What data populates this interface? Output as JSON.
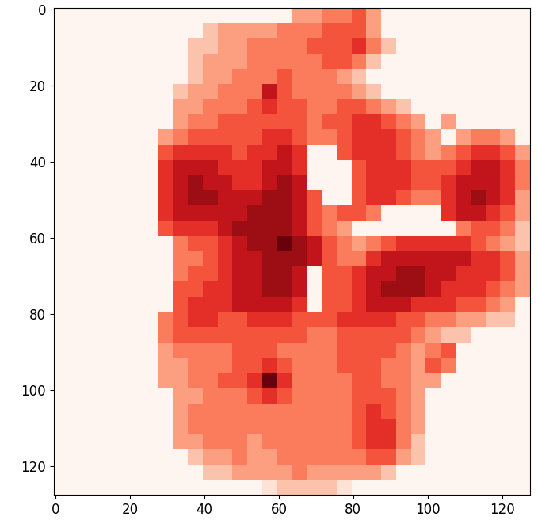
{
  "chart_data": {
    "type": "heatmap",
    "color": "Reds",
    "color_range": [
      0,
      9
    ],
    "xlim": [
      -0.5,
      127.5
    ],
    "ylim": [
      127.5,
      -0.5
    ],
    "xticks": [
      0,
      20,
      40,
      60,
      80,
      100,
      120
    ],
    "yticks": [
      0,
      20,
      40,
      60,
      80,
      100,
      120
    ],
    "cells": [
      [
        0,
        0,
        0,
        0,
        0,
        0,
        0,
        0,
        0,
        0,
        0,
        0,
        0,
        0,
        0,
        0,
        3,
        3,
        4,
        4,
        5,
        3,
        0,
        0,
        0,
        0,
        0,
        0,
        0,
        0,
        0,
        0
      ],
      [
        0,
        0,
        0,
        0,
        0,
        0,
        0,
        0,
        0,
        0,
        2,
        3,
        3,
        3,
        3,
        4,
        4,
        4,
        5,
        5,
        5,
        3,
        0,
        0,
        0,
        0,
        0,
        0,
        0,
        0,
        0,
        0
      ],
      [
        0,
        0,
        0,
        0,
        0,
        0,
        0,
        0,
        0,
        2,
        2,
        3,
        3,
        4,
        4,
        4,
        4,
        5,
        5,
        5,
        6,
        4,
        2,
        0,
        0,
        0,
        0,
        0,
        0,
        0,
        0,
        0
      ],
      [
        0,
        0,
        0,
        0,
        0,
        0,
        0,
        0,
        0,
        2,
        3,
        3,
        3,
        4,
        4,
        4,
        4,
        4,
        5,
        5,
        4,
        2,
        0,
        0,
        0,
        0,
        0,
        0,
        0,
        0,
        0,
        0
      ],
      [
        0,
        0,
        0,
        0,
        0,
        0,
        0,
        0,
        0,
        2,
        3,
        3,
        4,
        4,
        4,
        5,
        4,
        4,
        4,
        3,
        2,
        0,
        0,
        0,
        0,
        0,
        0,
        0,
        0,
        0,
        0,
        0
      ],
      [
        0,
        0,
        0,
        0,
        0,
        0,
        0,
        0,
        2,
        3,
        3,
        4,
        4,
        4,
        7,
        5,
        4,
        4,
        4,
        4,
        3,
        2,
        0,
        0,
        0,
        0,
        0,
        0,
        0,
        0,
        0,
        0
      ],
      [
        0,
        0,
        0,
        0,
        0,
        0,
        0,
        0,
        3,
        3,
        4,
        4,
        4,
        5,
        6,
        5,
        5,
        4,
        4,
        5,
        5,
        4,
        3,
        2,
        0,
        0,
        0,
        0,
        0,
        0,
        0,
        0
      ],
      [
        0,
        0,
        0,
        0,
        0,
        0,
        0,
        0,
        3,
        4,
        4,
        5,
        5,
        5,
        5,
        5,
        5,
        4,
        5,
        5,
        6,
        6,
        5,
        4,
        3,
        0,
        3,
        0,
        0,
        0,
        0,
        0
      ],
      [
        0,
        0,
        0,
        0,
        0,
        0,
        0,
        3,
        4,
        5,
        5,
        5,
        5,
        5,
        6,
        6,
        5,
        4,
        4,
        5,
        6,
        6,
        6,
        5,
        4,
        3,
        0,
        3,
        4,
        4,
        3,
        0
      ],
      [
        0,
        0,
        0,
        0,
        0,
        0,
        0,
        5,
        6,
        6,
        6,
        6,
        5,
        6,
        6,
        7,
        6,
        0,
        0,
        5,
        6,
        6,
        6,
        5,
        4,
        3,
        4,
        5,
        6,
        6,
        5,
        3
      ],
      [
        0,
        0,
        0,
        0,
        0,
        0,
        0,
        6,
        7,
        7,
        7,
        6,
        6,
        6,
        7,
        7,
        6,
        0,
        0,
        0,
        5,
        6,
        6,
        6,
        5,
        5,
        5,
        6,
        7,
        7,
        6,
        4
      ],
      [
        0,
        0,
        0,
        0,
        0,
        0,
        0,
        6,
        7,
        8,
        7,
        7,
        6,
        6,
        7,
        8,
        7,
        0,
        0,
        0,
        5,
        6,
        6,
        6,
        5,
        5,
        6,
        7,
        7,
        7,
        6,
        4
      ],
      [
        0,
        0,
        0,
        0,
        0,
        0,
        0,
        6,
        7,
        8,
        8,
        7,
        7,
        7,
        8,
        8,
        7,
        5,
        0,
        0,
        5,
        6,
        6,
        5,
        4,
        4,
        6,
        7,
        8,
        7,
        6,
        3
      ],
      [
        0,
        0,
        0,
        0,
        0,
        0,
        0,
        6,
        7,
        7,
        7,
        7,
        7,
        8,
        8,
        8,
        7,
        5,
        4,
        5,
        5,
        4,
        0,
        0,
        0,
        0,
        6,
        7,
        7,
        6,
        5,
        3
      ],
      [
        0,
        0,
        0,
        0,
        0,
        0,
        0,
        5,
        6,
        6,
        6,
        7,
        8,
        8,
        8,
        8,
        7,
        5,
        4,
        3,
        0,
        0,
        0,
        0,
        0,
        0,
        0,
        4,
        5,
        5,
        4,
        2
      ],
      [
        0,
        0,
        0,
        0,
        0,
        0,
        0,
        0,
        4,
        5,
        5,
        6,
        7,
        8,
        8,
        9,
        8,
        7,
        5,
        4,
        3,
        4,
        5,
        6,
        6,
        6,
        6,
        6,
        5,
        4,
        3,
        2
      ],
      [
        0,
        0,
        0,
        0,
        0,
        0,
        0,
        0,
        4,
        4,
        5,
        6,
        7,
        7,
        8,
        8,
        8,
        7,
        5,
        4,
        4,
        6,
        7,
        7,
        7,
        7,
        7,
        7,
        6,
        6,
        5,
        3
      ],
      [
        0,
        0,
        0,
        0,
        0,
        0,
        0,
        0,
        4,
        5,
        5,
        6,
        7,
        7,
        8,
        8,
        7,
        0,
        5,
        5,
        6,
        7,
        7,
        8,
        8,
        7,
        7,
        6,
        6,
        6,
        5,
        3
      ],
      [
        0,
        0,
        0,
        0,
        0,
        0,
        0,
        0,
        5,
        5,
        6,
        6,
        7,
        7,
        8,
        8,
        7,
        0,
        5,
        5,
        6,
        7,
        8,
        8,
        8,
        7,
        6,
        6,
        6,
        5,
        4,
        3
      ],
      [
        0,
        0,
        0,
        0,
        0,
        0,
        0,
        0,
        5,
        6,
        6,
        6,
        7,
        7,
        7,
        7,
        6,
        0,
        5,
        5,
        6,
        7,
        7,
        7,
        6,
        6,
        6,
        5,
        5,
        4,
        3,
        0
      ],
      [
        0,
        0,
        0,
        0,
        0,
        0,
        0,
        4,
        5,
        6,
        6,
        5,
        5,
        6,
        6,
        6,
        5,
        5,
        5,
        6,
        6,
        6,
        6,
        5,
        5,
        4,
        4,
        3,
        3,
        2,
        2,
        0
      ],
      [
        0,
        0,
        0,
        0,
        0,
        0,
        0,
        4,
        5,
        5,
        5,
        5,
        5,
        5,
        5,
        5,
        5,
        4,
        4,
        5,
        5,
        5,
        5,
        5,
        4,
        3,
        2,
        2,
        0,
        0,
        0,
        0
      ],
      [
        0,
        0,
        0,
        0,
        0,
        0,
        0,
        3,
        4,
        4,
        4,
        4,
        5,
        5,
        5,
        4,
        4,
        4,
        4,
        5,
        5,
        5,
        5,
        4,
        3,
        4,
        5,
        0,
        0,
        0,
        0,
        0
      ],
      [
        0,
        0,
        0,
        0,
        0,
        0,
        0,
        3,
        3,
        4,
        4,
        4,
        5,
        5,
        6,
        5,
        4,
        4,
        4,
        5,
        5,
        5,
        4,
        4,
        3,
        5,
        4,
        0,
        0,
        0,
        0,
        0
      ],
      [
        0,
        0,
        0,
        0,
        0,
        0,
        0,
        3,
        3,
        4,
        4,
        5,
        5,
        6,
        9,
        6,
        4,
        4,
        4,
        4,
        5,
        5,
        4,
        4,
        3,
        3,
        0,
        0,
        0,
        0,
        0,
        0
      ],
      [
        0,
        0,
        0,
        0,
        0,
        0,
        0,
        0,
        3,
        3,
        4,
        4,
        4,
        5,
        6,
        5,
        4,
        4,
        4,
        4,
        5,
        5,
        5,
        4,
        3,
        0,
        0,
        0,
        0,
        0,
        0,
        0
      ],
      [
        0,
        0,
        0,
        0,
        0,
        0,
        0,
        0,
        3,
        4,
        4,
        4,
        4,
        4,
        4,
        4,
        4,
        4,
        4,
        4,
        5,
        6,
        5,
        4,
        3,
        0,
        0,
        0,
        0,
        0,
        0,
        0
      ],
      [
        0,
        0,
        0,
        0,
        0,
        0,
        0,
        0,
        3,
        4,
        4,
        4,
        4,
        4,
        4,
        4,
        4,
        4,
        4,
        4,
        5,
        6,
        6,
        4,
        3,
        0,
        0,
        0,
        0,
        0,
        0,
        0
      ],
      [
        0,
        0,
        0,
        0,
        0,
        0,
        0,
        0,
        3,
        3,
        4,
        4,
        4,
        3,
        4,
        4,
        4,
        4,
        4,
        4,
        5,
        6,
        6,
        4,
        2,
        0,
        0,
        0,
        0,
        0,
        0,
        0
      ],
      [
        0,
        0,
        0,
        0,
        0,
        0,
        0,
        0,
        0,
        2,
        3,
        3,
        4,
        3,
        3,
        4,
        4,
        4,
        4,
        4,
        4,
        5,
        5,
        3,
        2,
        0,
        0,
        0,
        0,
        0,
        0,
        0
      ],
      [
        0,
        0,
        0,
        0,
        0,
        0,
        0,
        0,
        0,
        0,
        2,
        2,
        3,
        3,
        3,
        3,
        4,
        3,
        3,
        3,
        3,
        3,
        2,
        0,
        0,
        0,
        0,
        0,
        0,
        0,
        0,
        0
      ],
      [
        0,
        0,
        0,
        0,
        0,
        0,
        0,
        0,
        0,
        0,
        0,
        0,
        0,
        0,
        1,
        2,
        2,
        2,
        2,
        1,
        0,
        0,
        0,
        0,
        0,
        0,
        0,
        0,
        0,
        0,
        0,
        0
      ]
    ]
  }
}
